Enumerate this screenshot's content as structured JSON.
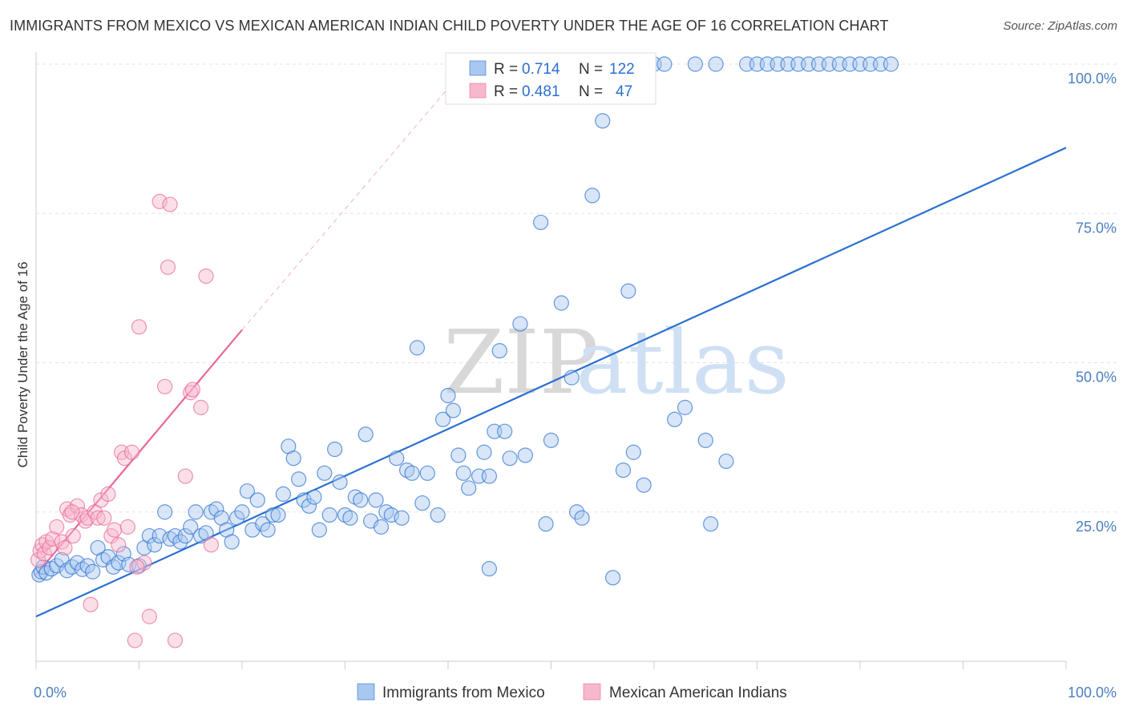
{
  "title": "IMMIGRANTS FROM MEXICO VS MEXICAN AMERICAN INDIAN CHILD POVERTY UNDER THE AGE OF 16 CORRELATION CHART",
  "source": "Source: ZipAtlas.com",
  "watermark": {
    "zip": "ZIP",
    "atlas": "atlas"
  },
  "colors": {
    "blue": "#2a6fd0",
    "pink": "#e8679a",
    "blue_fill": "#a9c8f0",
    "pink_fill": "#f7b8cc"
  },
  "chart_data": {
    "type": "scatter",
    "ylabel": "Child Poverty Under the Age of 16",
    "x_ticks": [
      "0.0%",
      "100.0%"
    ],
    "y_ticks": [
      "25.0%",
      "50.0%",
      "75.0%",
      "100.0%"
    ],
    "xlim": [
      0,
      100
    ],
    "ylim": [
      0,
      100
    ],
    "legend": {
      "r_label": "R =",
      "n_label": "N =",
      "rows": [
        {
          "r": "0.714",
          "n": "122"
        },
        {
          "r": "0.481",
          "n": "47"
        }
      ]
    },
    "series": [
      {
        "name": "Immigrants from Mexico",
        "trend": {
          "x0": 0,
          "y0": 7.5,
          "x1": 100,
          "y1": 86
        },
        "points": [
          [
            0.3,
            14.5
          ],
          [
            0.5,
            15
          ],
          [
            0.7,
            15.8
          ],
          [
            1,
            14.8
          ],
          [
            1.5,
            15.5
          ],
          [
            2,
            16
          ],
          [
            2.5,
            17
          ],
          [
            3,
            15.2
          ],
          [
            3.5,
            15.8
          ],
          [
            4,
            16.5
          ],
          [
            4.5,
            15.4
          ],
          [
            5,
            16
          ],
          [
            5.5,
            15
          ],
          [
            6,
            19
          ],
          [
            6.5,
            17
          ],
          [
            7,
            17.5
          ],
          [
            7.5,
            15.8
          ],
          [
            8,
            16.5
          ],
          [
            8.5,
            18
          ],
          [
            9,
            16.2
          ],
          [
            10,
            16
          ],
          [
            10.5,
            19
          ],
          [
            11,
            21
          ],
          [
            11.5,
            19.5
          ],
          [
            12,
            21
          ],
          [
            12.5,
            25
          ],
          [
            13,
            20.5
          ],
          [
            13.5,
            21
          ],
          [
            14,
            20
          ],
          [
            14.5,
            21
          ],
          [
            15,
            22.5
          ],
          [
            15.5,
            25
          ],
          [
            16,
            21
          ],
          [
            16.5,
            21.5
          ],
          [
            17,
            25
          ],
          [
            17.5,
            25.5
          ],
          [
            18,
            24
          ],
          [
            18.5,
            22
          ],
          [
            19,
            20
          ],
          [
            19.5,
            24
          ],
          [
            20,
            25
          ],
          [
            20.5,
            28.5
          ],
          [
            21,
            22
          ],
          [
            21.5,
            27
          ],
          [
            22,
            23
          ],
          [
            22.5,
            22
          ],
          [
            23,
            24.5
          ],
          [
            23.5,
            24.5
          ],
          [
            24,
            28
          ],
          [
            24.5,
            36
          ],
          [
            25,
            34
          ],
          [
            25.5,
            30.5
          ],
          [
            26,
            27
          ],
          [
            26.5,
            26
          ],
          [
            27,
            27.5
          ],
          [
            27.5,
            22
          ],
          [
            28,
            31.5
          ],
          [
            28.5,
            24.5
          ],
          [
            29,
            35.5
          ],
          [
            29.5,
            30
          ],
          [
            30,
            24.5
          ],
          [
            30.5,
            24
          ],
          [
            31,
            27.5
          ],
          [
            31.5,
            27
          ],
          [
            32,
            38
          ],
          [
            32.5,
            23.5
          ],
          [
            33,
            27
          ],
          [
            33.5,
            22.5
          ],
          [
            34,
            25
          ],
          [
            34.5,
            24.5
          ],
          [
            35,
            34
          ],
          [
            35.5,
            24
          ],
          [
            36,
            32
          ],
          [
            36.5,
            31.5
          ],
          [
            37,
            52.5
          ],
          [
            37.5,
            26.5
          ],
          [
            38,
            31.5
          ],
          [
            39,
            24.5
          ],
          [
            39.5,
            40.5
          ],
          [
            40,
            44.5
          ],
          [
            40.5,
            42
          ],
          [
            41,
            34.5
          ],
          [
            41.5,
            31.5
          ],
          [
            42,
            29
          ],
          [
            43,
            31
          ],
          [
            43.5,
            35
          ],
          [
            44,
            31
          ],
          [
            44.5,
            38.5
          ],
          [
            45,
            52
          ],
          [
            45.5,
            38.5
          ],
          [
            46,
            34
          ],
          [
            47,
            56.5
          ],
          [
            47.5,
            34.5
          ],
          [
            49,
            73.5
          ],
          [
            50,
            37
          ],
          [
            51,
            60
          ],
          [
            52,
            47.5
          ],
          [
            52.5,
            25
          ],
          [
            53,
            24
          ],
          [
            54,
            78
          ],
          [
            55,
            90.5
          ],
          [
            56,
            14
          ],
          [
            57,
            32
          ],
          [
            57.5,
            62
          ],
          [
            58,
            35
          ],
          [
            59,
            29.5
          ],
          [
            60,
            100
          ],
          [
            61,
            100
          ],
          [
            62,
            40.5
          ],
          [
            63,
            42.5
          ],
          [
            64,
            100
          ],
          [
            65,
            37
          ],
          [
            65.5,
            23
          ],
          [
            66,
            100
          ],
          [
            67,
            33.5
          ],
          [
            69,
            100
          ],
          [
            70,
            100
          ],
          [
            71,
            100
          ],
          [
            72,
            100
          ],
          [
            73,
            100
          ],
          [
            74,
            100
          ],
          [
            75,
            100
          ],
          [
            76,
            100
          ],
          [
            77,
            100
          ],
          [
            78,
            100
          ],
          [
            79,
            100
          ],
          [
            80,
            100
          ],
          [
            81,
            100
          ],
          [
            82,
            100
          ],
          [
            83,
            100
          ],
          [
            44,
            15.5
          ],
          [
            49.5,
            23
          ]
        ]
      },
      {
        "name": "Mexican American Indians",
        "trend": {
          "x0": 0,
          "y0": 14.5,
          "x1": 20,
          "y1": 55.5
        },
        "trend_dashed": {
          "x0": 20,
          "y0": 55.5,
          "x1": 42,
          "y1": 100
        },
        "points": [
          [
            0.2,
            17
          ],
          [
            0.4,
            18.5
          ],
          [
            0.6,
            19.5
          ],
          [
            0.8,
            18
          ],
          [
            1,
            20
          ],
          [
            1.3,
            19
          ],
          [
            1.6,
            20.5
          ],
          [
            2,
            22.5
          ],
          [
            2.5,
            20
          ],
          [
            2.8,
            19
          ],
          [
            3,
            25.5
          ],
          [
            3.3,
            24.5
          ],
          [
            3.6,
            21
          ],
          [
            4,
            26
          ],
          [
            4.4,
            24.5
          ],
          [
            4.8,
            23.5
          ],
          [
            5,
            24
          ],
          [
            5.3,
            9.5
          ],
          [
            5.7,
            25
          ],
          [
            6,
            24
          ],
          [
            6.3,
            27
          ],
          [
            6.6,
            24
          ],
          [
            7,
            28
          ],
          [
            7.3,
            21
          ],
          [
            7.6,
            22
          ],
          [
            8,
            19.5
          ],
          [
            8.3,
            35
          ],
          [
            8.6,
            34
          ],
          [
            8.9,
            22.5
          ],
          [
            9.3,
            35
          ],
          [
            9.6,
            3.5
          ],
          [
            10,
            56
          ],
          [
            10.5,
            16.5
          ],
          [
            11,
            7.5
          ],
          [
            12,
            77
          ],
          [
            12.5,
            46
          ],
          [
            12.8,
            66
          ],
          [
            13,
            76.5
          ],
          [
            13.5,
            3.5
          ],
          [
            14.5,
            31
          ],
          [
            15,
            45
          ],
          [
            15.2,
            45.5
          ],
          [
            16,
            42.5
          ],
          [
            17,
            19.5
          ],
          [
            16.5,
            64.5
          ],
          [
            9.8,
            15.8
          ],
          [
            3.5,
            25
          ]
        ]
      }
    ]
  }
}
